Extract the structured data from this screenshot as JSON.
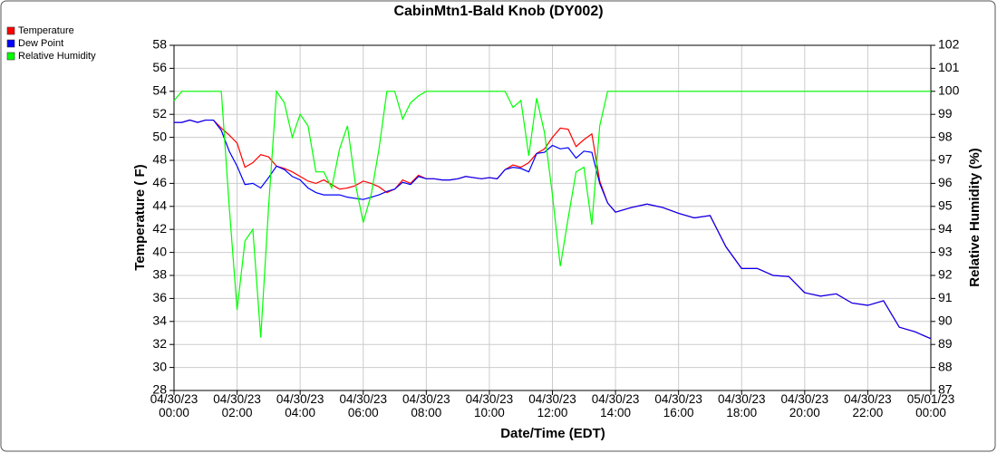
{
  "chart_data": {
    "type": "line",
    "title": "CabinMtn1-Bald Knob (DY002)",
    "x_label": "Date/Time (EDT)",
    "y_label": "Temperature ( F)",
    "y2_label": "Relative Humidity (%)",
    "legend": "top-left",
    "grid": true,
    "xlim": [
      0,
      24
    ],
    "xticks": [
      {
        "value": 0,
        "label": "04/30/23 00:00"
      },
      {
        "value": 2,
        "label": "04/30/23 02:00"
      },
      {
        "value": 4,
        "label": "04/30/23 04:00"
      },
      {
        "value": 6,
        "label": "04/30/23 06:00"
      },
      {
        "value": 8,
        "label": "04/30/23 08:00"
      },
      {
        "value": 10,
        "label": "04/30/23 10:00"
      },
      {
        "value": 12,
        "label": "04/30/23 12:00"
      },
      {
        "value": 14,
        "label": "04/30/23 14:00"
      },
      {
        "value": 16,
        "label": "04/30/23 16:00"
      },
      {
        "value": 18,
        "label": "04/30/23 18:00"
      },
      {
        "value": 20,
        "label": "04/30/23 20:00"
      },
      {
        "value": 22,
        "label": "04/30/23 22:00"
      },
      {
        "value": 24,
        "label": "05/01/23 00:00"
      }
    ],
    "ylim": [
      28,
      58
    ],
    "yticks": [
      28,
      30,
      32,
      34,
      36,
      38,
      40,
      42,
      44,
      46,
      48,
      50,
      52,
      54,
      56,
      58
    ],
    "y2lim": [
      87,
      102
    ],
    "y2ticks": [
      87,
      88,
      89,
      90,
      91,
      92,
      93,
      94,
      95,
      96,
      97,
      98,
      99,
      100,
      101,
      102
    ],
    "x": [
      0,
      0.25,
      0.5,
      0.75,
      1,
      1.25,
      1.5,
      1.75,
      2,
      2.25,
      2.5,
      2.75,
      3,
      3.25,
      3.5,
      3.75,
      4,
      4.25,
      4.5,
      4.75,
      5,
      5.25,
      5.5,
      5.75,
      6,
      6.25,
      6.5,
      6.75,
      7,
      7.25,
      7.5,
      7.75,
      8,
      8.25,
      8.5,
      8.75,
      9,
      9.25,
      9.5,
      9.75,
      10,
      10.25,
      10.5,
      10.75,
      11,
      11.25,
      11.5,
      11.75,
      12,
      12.25,
      12.5,
      12.75,
      13,
      13.25,
      13.5,
      13.75,
      14,
      14.5,
      15,
      15.5,
      16,
      16.5,
      17,
      17.5,
      18,
      18.5,
      19,
      19.5,
      20,
      20.5,
      21,
      21.5,
      22,
      22.5,
      23,
      23.5,
      24
    ],
    "series": [
      {
        "name": "Temperature",
        "color": "#ff0000",
        "axis": "y",
        "values": [
          51.3,
          51.3,
          51.5,
          51.3,
          51.5,
          51.5,
          50.8,
          50.2,
          49.5,
          47.4,
          47.8,
          48.5,
          48.3,
          47.5,
          47.3,
          47.0,
          46.6,
          46.2,
          46.0,
          46.3,
          45.9,
          45.5,
          45.6,
          45.8,
          46.2,
          46.0,
          45.7,
          45.2,
          45.5,
          46.3,
          46.0,
          46.7,
          46.4,
          46.4,
          46.3,
          46.3,
          46.4,
          46.6,
          46.5,
          46.4,
          46.5,
          46.4,
          47.2,
          47.6,
          47.4,
          47.8,
          48.6,
          49.0,
          50.0,
          50.8,
          50.7,
          49.2,
          49.8,
          50.3,
          46.2,
          44.3,
          43.5,
          43.9,
          44.2,
          43.9,
          43.4,
          43.0,
          43.2,
          40.5,
          38.6,
          38.6,
          38.0,
          37.9,
          36.5,
          36.2,
          36.4,
          35.6,
          35.4,
          35.8,
          33.5,
          33.1,
          32.5
        ]
      },
      {
        "name": "Dew Point",
        "color": "#0000ff",
        "axis": "y",
        "values": [
          51.3,
          51.3,
          51.5,
          51.3,
          51.5,
          51.5,
          50.6,
          48.8,
          47.5,
          45.9,
          46.0,
          45.6,
          46.5,
          47.5,
          47.2,
          46.6,
          46.3,
          45.6,
          45.2,
          45.0,
          45.0,
          45.0,
          44.8,
          44.7,
          44.6,
          44.8,
          45.0,
          45.3,
          45.5,
          46.1,
          45.9,
          46.6,
          46.4,
          46.4,
          46.3,
          46.3,
          46.4,
          46.6,
          46.5,
          46.4,
          46.5,
          46.4,
          47.2,
          47.4,
          47.3,
          47.0,
          48.6,
          48.7,
          49.3,
          49.0,
          49.1,
          48.2,
          48.8,
          48.7,
          46.0,
          44.3,
          43.5,
          43.9,
          44.2,
          43.9,
          43.4,
          43.0,
          43.2,
          40.5,
          38.6,
          38.6,
          38.0,
          37.9,
          36.5,
          36.2,
          36.4,
          35.6,
          35.4,
          35.8,
          33.5,
          33.1,
          32.5
        ]
      },
      {
        "name": "Relative Humidity",
        "color": "#00ff00",
        "axis": "y2",
        "values": [
          99.6,
          100,
          100,
          100,
          100,
          100,
          100,
          95,
          90.5,
          93.5,
          94,
          89.3,
          95,
          100,
          99.5,
          98,
          99,
          98.5,
          96.5,
          96.5,
          95.8,
          97.5,
          98.5,
          96,
          94.3,
          95.5,
          97.5,
          100,
          100,
          98.8,
          99.5,
          99.8,
          100,
          100,
          100,
          100,
          100,
          100,
          100,
          100,
          100,
          100,
          100,
          99.3,
          99.6,
          97.2,
          99.7,
          98.2,
          95.5,
          92.4,
          94.5,
          96.5,
          96.7,
          94.2,
          98.5,
          100,
          100,
          100,
          100,
          100,
          100,
          100,
          100,
          100,
          100,
          100,
          100,
          100,
          100,
          100,
          100,
          100,
          100,
          100,
          100,
          100,
          100
        ]
      }
    ]
  }
}
